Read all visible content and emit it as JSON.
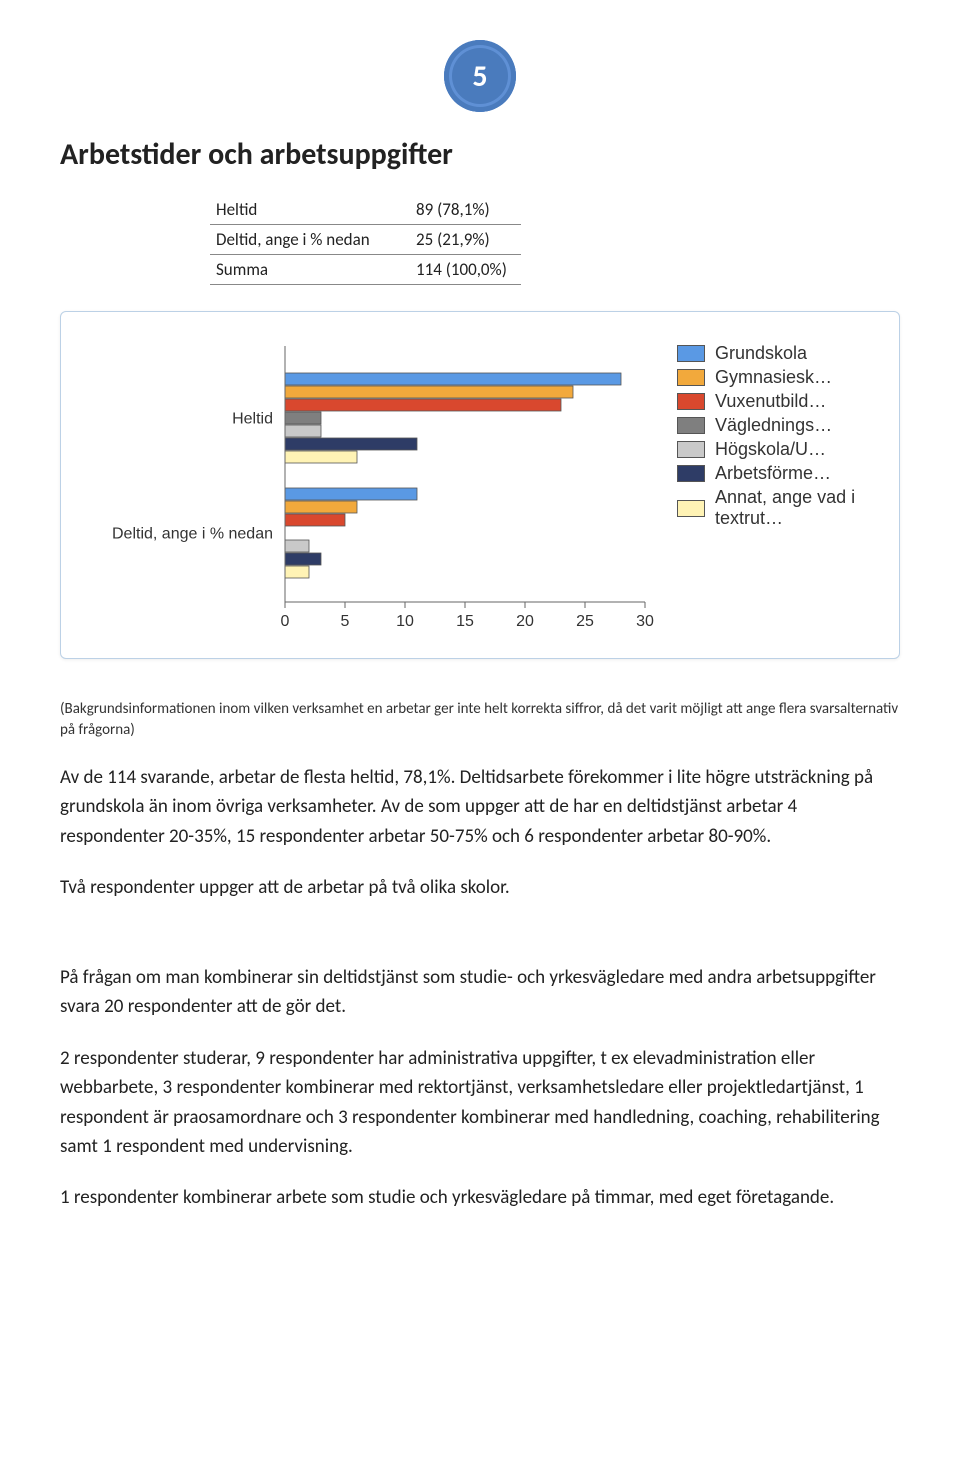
{
  "page_number": "5",
  "heading": "Arbetstider och arbetsuppgifter",
  "table": {
    "rows": [
      {
        "label": "Heltid",
        "value": "89 (78,1%)"
      },
      {
        "label": "Deltid, ange i % nedan",
        "value": "25 (21,9%)"
      },
      {
        "label": "Summa",
        "value": "114 (100,0%)"
      }
    ]
  },
  "chart": {
    "type": "grouped horizontal bar",
    "colors": {
      "grundskola": "#5a99e4",
      "gymnasiesk": "#f2a93c",
      "vuxenutbild": "#d9482e",
      "vaglednings": "#7f7f7f",
      "hogskola": "#c9c9c9",
      "arbetsforme": "#2e3c66",
      "annat": "#fff3b5",
      "bar_border": "#555555",
      "axis": "#666666",
      "tick_text": "#333333"
    },
    "x_axis": {
      "ticks": [
        "0",
        "5",
        "10",
        "15",
        "20",
        "25",
        "30"
      ],
      "max": 30
    },
    "groups": [
      {
        "label": "Heltid",
        "bars": [
          {
            "series": "grundskola",
            "value": 28
          },
          {
            "series": "gymnasiesk",
            "value": 24
          },
          {
            "series": "vuxenutbild",
            "value": 23
          },
          {
            "series": "vaglednings",
            "value": 3
          },
          {
            "series": "hogskola",
            "value": 3
          },
          {
            "series": "arbetsforme",
            "value": 11
          },
          {
            "series": "annat",
            "value": 6
          }
        ]
      },
      {
        "label": "Deltid, ange i % nedan",
        "bars": [
          {
            "series": "grundskola",
            "value": 11
          },
          {
            "series": "gymnasiesk",
            "value": 6
          },
          {
            "series": "vuxenutbild",
            "value": 5
          },
          {
            "series": "vaglednings",
            "value": 0
          },
          {
            "series": "hogskola",
            "value": 2
          },
          {
            "series": "arbetsforme",
            "value": 3
          },
          {
            "series": "annat",
            "value": 2
          }
        ]
      }
    ],
    "legend": [
      {
        "series": "grundskola",
        "label": "Grundskola"
      },
      {
        "series": "gymnasiesk",
        "label": "Gymnasiesk…"
      },
      {
        "series": "vuxenutbild",
        "label": "Vuxenutbild…"
      },
      {
        "series": "vaglednings",
        "label": "Väglednings…"
      },
      {
        "series": "hogskola",
        "label": "Högskola/U…"
      },
      {
        "series": "arbetsforme",
        "label": "Arbetsförme…"
      },
      {
        "series": "annat",
        "label": "Annat, ange vad i textrut…"
      }
    ]
  },
  "note": "(Bakgrundsinformationen inom vilken verksamhet en arbetar ger inte helt korrekta siffror, då det varit möjligt att ange flera svarsalternativ på frågorna)",
  "paragraphs": [
    "Av de 114 svarande, arbetar de flesta heltid, 78,1%. Deltidsarbete förekommer i lite högre utsträckning på grundskola än inom övriga verksamheter. Av de som uppger att de har en deltidstjänst arbetar 4 respondenter 20-35%, 15 respondenter arbetar 50-75% och 6 respondenter arbetar 80-90%.",
    "Två respondenter uppger att de arbetar på två olika skolor.",
    "På frågan om man kombinerar sin deltidstjänst som studie- och yrkesvägledare med andra arbetsuppgifter svara 20 respondenter att de gör det.",
    "2 respondenter studerar, 9 respondenter har administrativa uppgifter, t ex elevadministration eller webbarbete, 3 respondenter kombinerar med rektortjänst, verksamhetsledare eller projektledartjänst, 1 respondent är praosamordnare och 3 respondenter kombinerar med handledning, coaching, rehabilitering samt 1 respondent med undervisning.",
    "1 respondenter kombinerar arbete som studie och yrkesvägledare på timmar, med eget företagande."
  ]
}
